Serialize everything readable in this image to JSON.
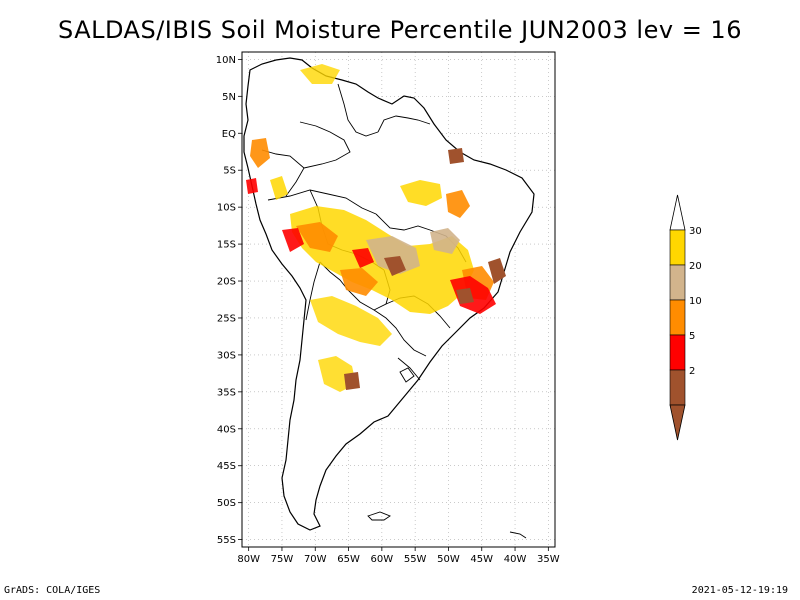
{
  "title": "SALDAS/IBIS Soil Moisture Percentile JUN2003 lev = 16",
  "footer": {
    "left": "GrADS: COLA/IGES",
    "right": "2021-05-12-19:19"
  },
  "map": {
    "lat_labels": [
      "10N",
      "5N",
      "EQ",
      "5S",
      "10S",
      "15S",
      "20S",
      "25S",
      "30S",
      "35S",
      "40S",
      "45S",
      "50S",
      "55S"
    ],
    "lon_labels": [
      "80W",
      "75W",
      "70W",
      "65W",
      "60W",
      "55W",
      "50W",
      "45W",
      "40W",
      "35W"
    ],
    "lat_range": [
      -56,
      11
    ],
    "lon_range": [
      -81,
      -34
    ],
    "gridlines": true
  },
  "legend": {
    "bins": [
      {
        "label": "2",
        "color": "#a0522d"
      },
      {
        "label": "5",
        "color": "#ff0000"
      },
      {
        "label": "10",
        "color": "#ff8c00"
      },
      {
        "label": "20",
        "color": "#d2b48c"
      },
      {
        "label": "30",
        "color": "#ffd700"
      }
    ],
    "top_color": "#ffffff"
  },
  "colors": {
    "map_fill": "#ffffff",
    "outline": "#000000",
    "grid": "#aaaaaa"
  }
}
